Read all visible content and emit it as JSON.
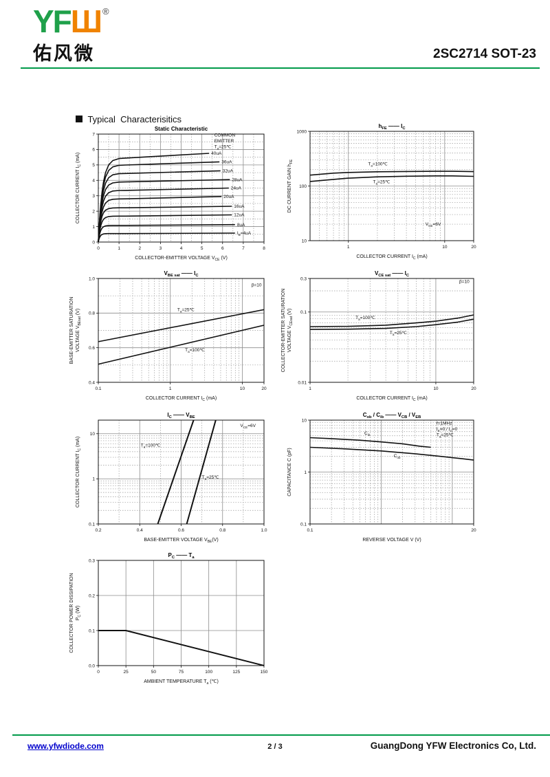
{
  "header": {
    "logo_yf": "YF",
    "logo_w": "Ш",
    "logo_reg": "®",
    "logo_cn": "佑风微",
    "part_number": "2SC2714 SOT-23",
    "accent_green": "#009a49",
    "logo_green": "#1fa04a",
    "logo_orange": "#f08300"
  },
  "section_title": "Typical  Characterisitics",
  "footer": {
    "website": "www.yfwdiode.com",
    "page": "2 / 3",
    "company": "GuangDong YFW Electronics Co, Ltd."
  },
  "chart_data": [
    {
      "id": "static-characteristic",
      "type": "line",
      "title": "Static Characteristic",
      "x": {
        "scale": "linear",
        "min": 0,
        "max": 8,
        "label": "COLLECTOR-EMITTER VOLTAGE    V_{CE}    (V)",
        "ticks": [
          {
            "v": 0,
            "t": "0"
          },
          {
            "v": 1,
            "t": "1"
          },
          {
            "v": 2,
            "t": "2"
          },
          {
            "v": 3,
            "t": "3"
          },
          {
            "v": 4,
            "t": "4"
          },
          {
            "v": 5,
            "t": "5"
          },
          {
            "v": 6,
            "t": "6"
          },
          {
            "v": 7,
            "t": "7"
          },
          {
            "v": 8,
            "t": "8"
          }
        ],
        "solid": [
          1,
          2,
          3,
          4,
          5,
          6,
          7
        ],
        "dotted_step": 0.5
      },
      "y": {
        "scale": "linear",
        "min": 0,
        "max": 7,
        "label": "COLLECTOR CURRENT    I_{C}    (mA)",
        "ticks": [
          {
            "v": 0,
            "t": "0"
          },
          {
            "v": 1,
            "t": "1"
          },
          {
            "v": 2,
            "t": "2"
          },
          {
            "v": 3,
            "t": "3"
          },
          {
            "v": 4,
            "t": "4"
          },
          {
            "v": 5,
            "t": "5"
          },
          {
            "v": 6,
            "t": "6"
          },
          {
            "v": 7,
            "t": "7"
          }
        ],
        "solid": [
          1,
          2,
          3,
          4,
          5,
          6
        ],
        "dotted_step": 0.5
      },
      "series": [
        {
          "name": "ib-40uA",
          "label": "40uA",
          "gen": "sat",
          "y1": 5.45,
          "y2": 5.75,
          "xend": 5.35,
          "tau": 0.2
        },
        {
          "name": "ib-36uA",
          "label": "36uA",
          "gen": "sat",
          "y1": 5.0,
          "y2": 5.2,
          "xend": 5.85,
          "tau": 0.19
        },
        {
          "name": "ib-32uA",
          "label": "32uA",
          "gen": "sat",
          "y1": 4.45,
          "y2": 4.62,
          "xend": 5.9,
          "tau": 0.18
        },
        {
          "name": "ib-28uA",
          "label": "28uA",
          "gen": "sat",
          "y1": 3.9,
          "y2": 4.05,
          "xend": 6.35,
          "tau": 0.17
        },
        {
          "name": "ib-24uA",
          "label": "24uA",
          "gen": "sat",
          "y1": 3.35,
          "y2": 3.5,
          "xend": 6.3,
          "tau": 0.16
        },
        {
          "name": "ib-20uA",
          "label": "20uA",
          "gen": "sat",
          "y1": 2.8,
          "y2": 2.95,
          "xend": 5.95,
          "tau": 0.15
        },
        {
          "name": "ib-16uA",
          "label": "16uA",
          "gen": "sat",
          "y1": 2.22,
          "y2": 2.32,
          "xend": 6.45,
          "tau": 0.13
        },
        {
          "name": "ib-12uA",
          "label": "12uA",
          "gen": "sat",
          "y1": 1.68,
          "y2": 1.76,
          "xend": 6.45,
          "tau": 0.12
        },
        {
          "name": "ib-8uA",
          "label": "8uA",
          "gen": "sat",
          "y1": 1.08,
          "y2": 1.13,
          "xend": 6.6,
          "tau": 0.1
        },
        {
          "name": "ib-4uA",
          "label": "I_{B}=4uA",
          "gen": "sat",
          "y1": 0.55,
          "y2": 0.58,
          "xend": 6.6,
          "tau": 0.08
        }
      ],
      "annotations": [
        {
          "text": "COMMON\nEMITTER\nT_{a}=25℃",
          "x": 5.6,
          "y": 6.85,
          "anchor": "start"
        }
      ]
    },
    {
      "id": "hfe-ic",
      "type": "line",
      "title": "h_{FE}  ——  I_{C}",
      "x": {
        "scale": "log",
        "min": 0.4,
        "max": 20,
        "label": "COLLECTOR CURRENT    I_{C}    (mA)",
        "ticks": [
          {
            "v": 1,
            "t": "1"
          },
          {
            "v": 10,
            "t": "10"
          },
          {
            "v": 20,
            "t": "20"
          }
        ],
        "solid": [
          1,
          10
        ],
        "log_minors": true
      },
      "y": {
        "scale": "log",
        "min": 10,
        "max": 1000,
        "label": "DC CURRENT GAIN    h_{FE}",
        "ticks": [
          {
            "v": 10,
            "t": "10"
          },
          {
            "v": 100,
            "t": "100"
          },
          {
            "v": 1000,
            "t": "1000"
          }
        ],
        "solid": [
          100
        ],
        "log_minors": true
      },
      "series": [
        {
          "name": "ta-100C",
          "label": "T_{a}=100℃",
          "label_pos": [
            1.6,
            238
          ],
          "points": [
            [
              0.4,
              158
            ],
            [
              0.7,
              172
            ],
            [
              1,
              177
            ],
            [
              2,
              182
            ],
            [
              4,
              184
            ],
            [
              8,
              186
            ],
            [
              12,
              186
            ],
            [
              20,
              183
            ]
          ]
        },
        {
          "name": "ta-25C",
          "label": "T_{a}=25℃",
          "label_pos": [
            1.8,
            112
          ],
          "points": [
            [
              0.4,
              121
            ],
            [
              0.7,
              132
            ],
            [
              1,
              139
            ],
            [
              2,
              147
            ],
            [
              4,
              151
            ],
            [
              8,
              153
            ],
            [
              12,
              153
            ],
            [
              20,
              150
            ]
          ]
        }
      ],
      "annotations": [
        {
          "text": "V_{CE}=6V",
          "x": 6.3,
          "y": 19,
          "anchor": "start"
        }
      ]
    },
    {
      "id": "vbesat-ic",
      "type": "line",
      "title": "V_{BE sat}  ——  I_{C}",
      "x": {
        "scale": "log",
        "min": 0.1,
        "max": 20,
        "label": "COLLECTOR CURRENT    I_{C}    (mA)",
        "ticks": [
          {
            "v": 0.1,
            "t": "0.1"
          },
          {
            "v": 1,
            "t": "1"
          },
          {
            "v": 10,
            "t": "10"
          },
          {
            "v": 20,
            "t": "20"
          }
        ],
        "solid": [
          1,
          10
        ],
        "log_minors": true
      },
      "y": {
        "scale": "linear",
        "min": 0.4,
        "max": 1.0,
        "label": "BASE-EMITTER SATURATION\nVOLTAGE    V_{BEsat}    (V)",
        "ticks": [
          {
            "v": 0.4,
            "t": "0.4"
          },
          {
            "v": 0.6,
            "t": "0.6"
          },
          {
            "v": 0.8,
            "t": "0.8"
          },
          {
            "v": 1.0,
            "t": "1.0"
          }
        ],
        "solid": [
          0.6,
          0.8
        ],
        "dotted_step": 0.1
      },
      "series": [
        {
          "name": "ta-25C",
          "label": "T_{a}=25℃",
          "label_pos": [
            1.25,
            0.812
          ],
          "points": [
            [
              0.1,
              0.635
            ],
            [
              20,
              0.82
            ]
          ]
        },
        {
          "name": "ta-100C",
          "label": "T_{a}=100℃",
          "label_pos": [
            1.6,
            0.578
          ],
          "points": [
            [
              0.1,
              0.505
            ],
            [
              20,
              0.73
            ]
          ]
        }
      ],
      "annotations": [
        {
          "text": "β=10",
          "x": 18.5,
          "y": 0.955,
          "anchor": "end"
        }
      ]
    },
    {
      "id": "vcesat-ic",
      "type": "line",
      "title": "V_{CE sat}  ——  I_{C}",
      "x": {
        "scale": "log",
        "min": 1,
        "max": 20,
        "label": "COLLECTOR CURRENT    I_{C}    (mA)",
        "ticks": [
          {
            "v": 1,
            "t": "1"
          },
          {
            "v": 10,
            "t": "10"
          },
          {
            "v": 20,
            "t": "20"
          }
        ],
        "solid": [
          10
        ],
        "log_minors": true
      },
      "y": {
        "scale": "log",
        "min": 0.01,
        "max": 0.3,
        "label": "COLLECTOR-EMITTER SATURATION\nVOLTAGE    V_{CEsat}    (V)",
        "ticks": [
          {
            "v": 0.01,
            "t": "0.01"
          },
          {
            "v": 0.1,
            "t": "0.1"
          },
          {
            "v": 0.3,
            "t": "0.3"
          }
        ],
        "solid": [
          0.1
        ],
        "log_minors": true
      },
      "series": [
        {
          "name": "ta-100C",
          "label": "T_{a}=100℃",
          "label_pos": [
            2.3,
            0.0795
          ],
          "points": [
            [
              1,
              0.062
            ],
            [
              2,
              0.0625
            ],
            [
              4,
              0.065
            ],
            [
              7,
              0.07
            ],
            [
              10,
              0.074
            ],
            [
              15,
              0.082
            ],
            [
              20,
              0.091
            ]
          ]
        },
        {
          "name": "ta-25C",
          "label": "T_{a}=25℃",
          "label_pos": [
            4.3,
            0.0485
          ],
          "points": [
            [
              1,
              0.0565
            ],
            [
              2,
              0.057
            ],
            [
              4,
              0.0585
            ],
            [
              7,
              0.062
            ],
            [
              10,
              0.066
            ],
            [
              15,
              0.072
            ],
            [
              20,
              0.079
            ]
          ]
        }
      ],
      "annotations": [
        {
          "text": "β=10",
          "x": 18.5,
          "y": 0.26,
          "anchor": "end"
        }
      ]
    },
    {
      "id": "ic-vbe",
      "type": "line",
      "title": "I_{C}  ——  V_{BE}",
      "x": {
        "scale": "linear",
        "min": 0.2,
        "max": 1.0,
        "label": "BASE-EMITTER VOLTAGE     V_{BE}(V)",
        "ticks": [
          {
            "v": 0.2,
            "t": "0.2"
          },
          {
            "v": 0.4,
            "t": "0.4"
          },
          {
            "v": 0.6,
            "t": "0.6"
          },
          {
            "v": 0.8,
            "t": "0.8"
          },
          {
            "v": 1.0,
            "t": "1.0"
          }
        ],
        "solid": [
          0.4,
          0.6,
          0.8
        ],
        "dotted_step": 0.1
      },
      "y": {
        "scale": "log",
        "min": 0.1,
        "max": 20,
        "label": "COLLECTOR CURRENT    I_{C} (mA)",
        "ticks": [
          {
            "v": 0.1,
            "t": "0.1"
          },
          {
            "v": 1,
            "t": "1"
          },
          {
            "v": 10,
            "t": "10"
          }
        ],
        "solid": [
          1,
          10
        ],
        "log_minors": true
      },
      "series": [
        {
          "name": "ta-100C",
          "label": "T_{a}=100℃",
          "label_pos": [
            0.405,
            5.2
          ],
          "points": [
            [
              0.487,
              0.1
            ],
            [
              0.66,
              20
            ]
          ],
          "width": 2
        },
        {
          "name": "ta-25C",
          "label": "T_{a}=25℃",
          "label_pos": [
            0.7,
            1.02
          ],
          "points": [
            [
              0.627,
              0.1
            ],
            [
              0.767,
              20
            ]
          ],
          "width": 2
        }
      ],
      "annotations": [
        {
          "text": "V_{CE}=6V",
          "x": 0.96,
          "y": 14,
          "anchor": "end"
        }
      ]
    },
    {
      "id": "cob-cib",
      "type": "line",
      "title": "C_{ob} / C_{ib}  ——  V_{CB} / V_{EB}",
      "x": {
        "scale": "log",
        "min": 0.1,
        "max": 20,
        "label": "REVERSE  VOLTAGE    V    (V)",
        "ticks": [
          {
            "v": 0.1,
            "t": "0.1"
          },
          {
            "v": 20,
            "t": "20"
          }
        ],
        "solid": [
          1,
          10
        ],
        "log_minors": true
      },
      "y": {
        "scale": "log",
        "min": 0.1,
        "max": 10,
        "label": "CAPACITANCE    C    (pF)",
        "ticks": [
          {
            "v": 0.1,
            "t": "0.1"
          },
          {
            "v": 1,
            "t": "1"
          },
          {
            "v": 10,
            "t": "10"
          }
        ],
        "solid": [
          1
        ],
        "log_minors": true
      },
      "series": [
        {
          "name": "cib",
          "label": "C_{ib}",
          "label_pos": [
            0.58,
            5.3
          ],
          "points": [
            [
              0.1,
              4.6
            ],
            [
              0.2,
              4.4
            ],
            [
              0.5,
              4.1
            ],
            [
              1,
              3.8
            ],
            [
              2,
              3.5
            ],
            [
              3.5,
              3.15
            ],
            [
              5,
              3.0
            ]
          ]
        },
        {
          "name": "cob",
          "label": "C_{ob}",
          "label_pos": [
            1.5,
            1.92
          ],
          "points": [
            [
              0.1,
              3.0
            ],
            [
              0.3,
              2.8
            ],
            [
              1,
              2.55
            ],
            [
              3,
              2.25
            ],
            [
              7,
              2.0
            ],
            [
              14,
              1.8
            ],
            [
              20,
              1.7
            ]
          ]
        }
      ],
      "annotations": [
        {
          "text": "f=1MHz\nI_{E}=0 / I_{C}=0\nT_{a}=25℃",
          "x": 6.0,
          "y": 8.2,
          "anchor": "start"
        }
      ]
    },
    {
      "id": "pc-ta",
      "type": "line",
      "title": "P_{C}  ——  T_{a}",
      "x": {
        "scale": "linear",
        "min": 0,
        "max": 150,
        "label": "AMBIENT TEMPERATURE    T_{a}    (℃)",
        "ticks": [
          {
            "v": 0,
            "t": "0"
          },
          {
            "v": 25,
            "t": "25"
          },
          {
            "v": 50,
            "t": "50"
          },
          {
            "v": 75,
            "t": "75"
          },
          {
            "v": 100,
            "t": "100"
          },
          {
            "v": 125,
            "t": "125"
          },
          {
            "v": 150,
            "t": "150"
          }
        ],
        "solid": [
          25,
          50,
          75,
          100,
          125
        ]
      },
      "y": {
        "scale": "linear",
        "min": 0,
        "max": 0.3,
        "label": "COLLECTOR POWER DISSIPATION\nP_{C}    (W)",
        "ticks": [
          {
            "v": 0,
            "t": "0.0"
          },
          {
            "v": 0.1,
            "t": "0.1"
          },
          {
            "v": 0.2,
            "t": "0.2"
          },
          {
            "v": 0.3,
            "t": "0.3"
          }
        ],
        "solid": [
          0.1,
          0.2
        ]
      },
      "series": [
        {
          "name": "pc-derating",
          "points": [
            [
              0,
              0.1
            ],
            [
              25,
              0.1
            ],
            [
              150,
              0
            ]
          ],
          "width": 2
        }
      ],
      "annotations": []
    }
  ]
}
